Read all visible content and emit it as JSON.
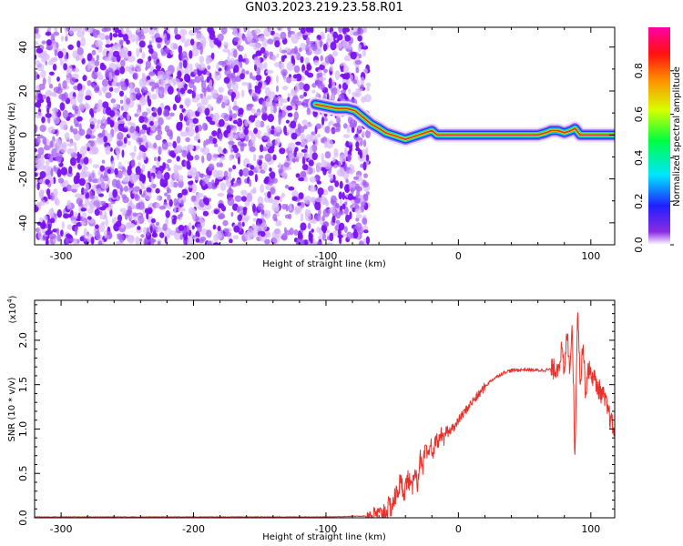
{
  "title": "GN03.2023.219.23.58.R01",
  "colors": {
    "spectrogram_noise": "#7a1cf0",
    "ridge": "#e8312a",
    "snr_line": "#e8312a"
  },
  "chart_data": [
    {
      "type": "heatmap",
      "title": "GN03.2023.219.23.58.R01",
      "xlabel": "Height of straight line (km)",
      "ylabel": "Frequency (Hz)",
      "xlim": [
        -320,
        118
      ],
      "ylim": [
        -50,
        49
      ],
      "xticks": [
        -300,
        -200,
        -100,
        0,
        100
      ],
      "yticks": [
        -40,
        -20,
        0,
        20,
        40
      ],
      "noise_region_x": [
        -320,
        -72
      ],
      "ridge": {
        "x": [
          -108,
          -100,
          -92,
          -84,
          -78,
          -72,
          -66,
          -60,
          -55,
          -50,
          -45,
          -40,
          -35,
          -30,
          -25,
          -20,
          -16,
          -12,
          0,
          20,
          40,
          60,
          66,
          70,
          75,
          80,
          85,
          88,
          92,
          96,
          100,
          105,
          110,
          118
        ],
        "y": [
          14,
          13,
          12,
          12,
          11,
          8,
          5,
          3,
          1,
          0,
          -1,
          -2,
          -1,
          0,
          1,
          2,
          0,
          0,
          0,
          0,
          0,
          0,
          1,
          2,
          2,
          1,
          2,
          3,
          0,
          0,
          0,
          0,
          0,
          0
        ]
      },
      "colorbar": {
        "label": "Normalized spectral amplitude",
        "range": [
          0,
          1
        ],
        "ticks": [
          0.0,
          0.2,
          0.4,
          0.6,
          0.8
        ],
        "tick_labels": [
          "0.0",
          "0.2",
          "0.4",
          "0.6",
          "0.8"
        ]
      }
    },
    {
      "type": "line",
      "xlabel": "Height of straight line (km)",
      "ylabel": "SNR (10 * v/v)",
      "scale_label": "(x10",
      "scale_exponent": "4",
      "xlim": [
        -320,
        118
      ],
      "ylim": [
        0,
        2.45
      ],
      "xticks": [
        -300,
        -200,
        -100,
        0,
        100
      ],
      "yticks": [
        0.0,
        0.5,
        1.0,
        1.5,
        2.0
      ],
      "ytick_labels": [
        "0.0",
        "0.5",
        "1.0",
        "1.5",
        "2.0"
      ],
      "series": [
        {
          "x": [
            -320,
            -100,
            -70,
            -62,
            -58,
            -54,
            -50,
            -47,
            -44,
            -41,
            -38,
            -35,
            -33,
            -31,
            -29,
            -27,
            -25,
            -23,
            -21,
            -19,
            -17,
            -15,
            -13,
            -11,
            -9,
            -7,
            -5,
            -3,
            0,
            5,
            10,
            15,
            20,
            25,
            30,
            35,
            40,
            50,
            60,
            70,
            74,
            76,
            78,
            80,
            82,
            84,
            86,
            88,
            90,
            92,
            94,
            96,
            98,
            100,
            102,
            104,
            106,
            108,
            110,
            112,
            114,
            116,
            118
          ],
          "y": [
            0.01,
            0.01,
            0.02,
            0.04,
            0.05,
            0.08,
            0.15,
            0.25,
            0.4,
            0.3,
            0.45,
            0.3,
            0.6,
            0.35,
            0.7,
            0.5,
            0.8,
            0.65,
            0.85,
            0.7,
            0.9,
            0.85,
            0.95,
            0.85,
            1.0,
            0.95,
            1.05,
            1.0,
            1.1,
            1.2,
            1.3,
            1.38,
            1.48,
            1.55,
            1.6,
            1.64,
            1.66,
            1.67,
            1.66,
            1.67,
            1.68,
            1.75,
            1.9,
            1.6,
            2.1,
            1.7,
            2.2,
            0.6,
            2.45,
            1.5,
            2.0,
            1.4,
            1.7,
            1.6,
            1.6,
            1.5,
            1.45,
            1.4,
            1.35,
            1.25,
            1.15,
            1.05,
            0.95
          ]
        }
      ]
    }
  ]
}
